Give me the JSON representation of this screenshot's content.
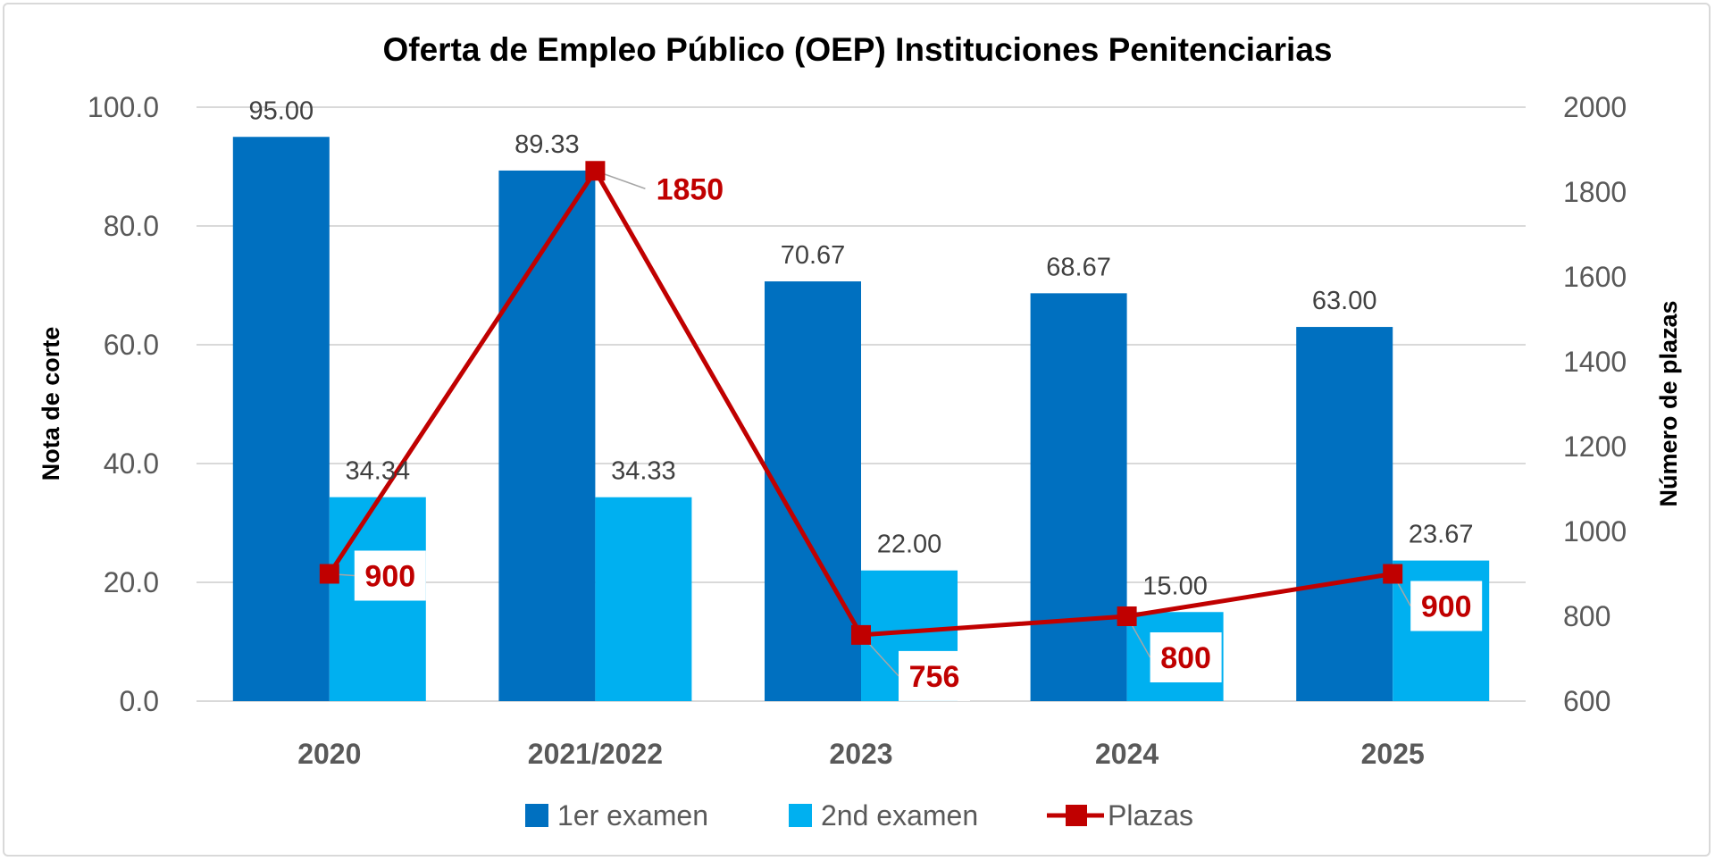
{
  "chart_data": {
    "type": "bar+line",
    "title": "Oferta de Empleo Público (OEP) Instituciones Penitenciarias",
    "ylabel": "Nota de corte",
    "y2label": "Número de plazas",
    "categories": [
      "2020",
      "2021/2022",
      "2023",
      "2024",
      "2025"
    ],
    "ylim": [
      0,
      100
    ],
    "y_ticks": [
      "0.0",
      "20.0",
      "40.0",
      "60.0",
      "80.0",
      "100.0"
    ],
    "y2lim": [
      600,
      2000
    ],
    "y2_ticks": [
      "600",
      "800",
      "1000",
      "1200",
      "1400",
      "1600",
      "1800",
      "2000"
    ],
    "grid": true,
    "legend_position": "bottom",
    "series": [
      {
        "name": "1er examen",
        "type": "bar",
        "axis": "left",
        "color": "#0070C0",
        "values": [
          95.0,
          89.33,
          70.67,
          68.67,
          63.0
        ],
        "labels": [
          "95.00",
          "89.33",
          "70.67",
          "68.67",
          "63.00"
        ]
      },
      {
        "name": "2nd examen",
        "type": "bar",
        "axis": "left",
        "color": "#00B0F0",
        "values": [
          34.34,
          34.33,
          22.0,
          15.0,
          23.67
        ],
        "labels": [
          "34.34",
          "34.33",
          "22.00",
          "15.00",
          "23.67"
        ]
      },
      {
        "name": "Plazas",
        "type": "line",
        "axis": "right",
        "color": "#C00000",
        "values": [
          900,
          1850,
          756,
          800,
          900
        ],
        "labels": [
          "900",
          "1850",
          "756",
          "800",
          "900"
        ]
      }
    ]
  }
}
